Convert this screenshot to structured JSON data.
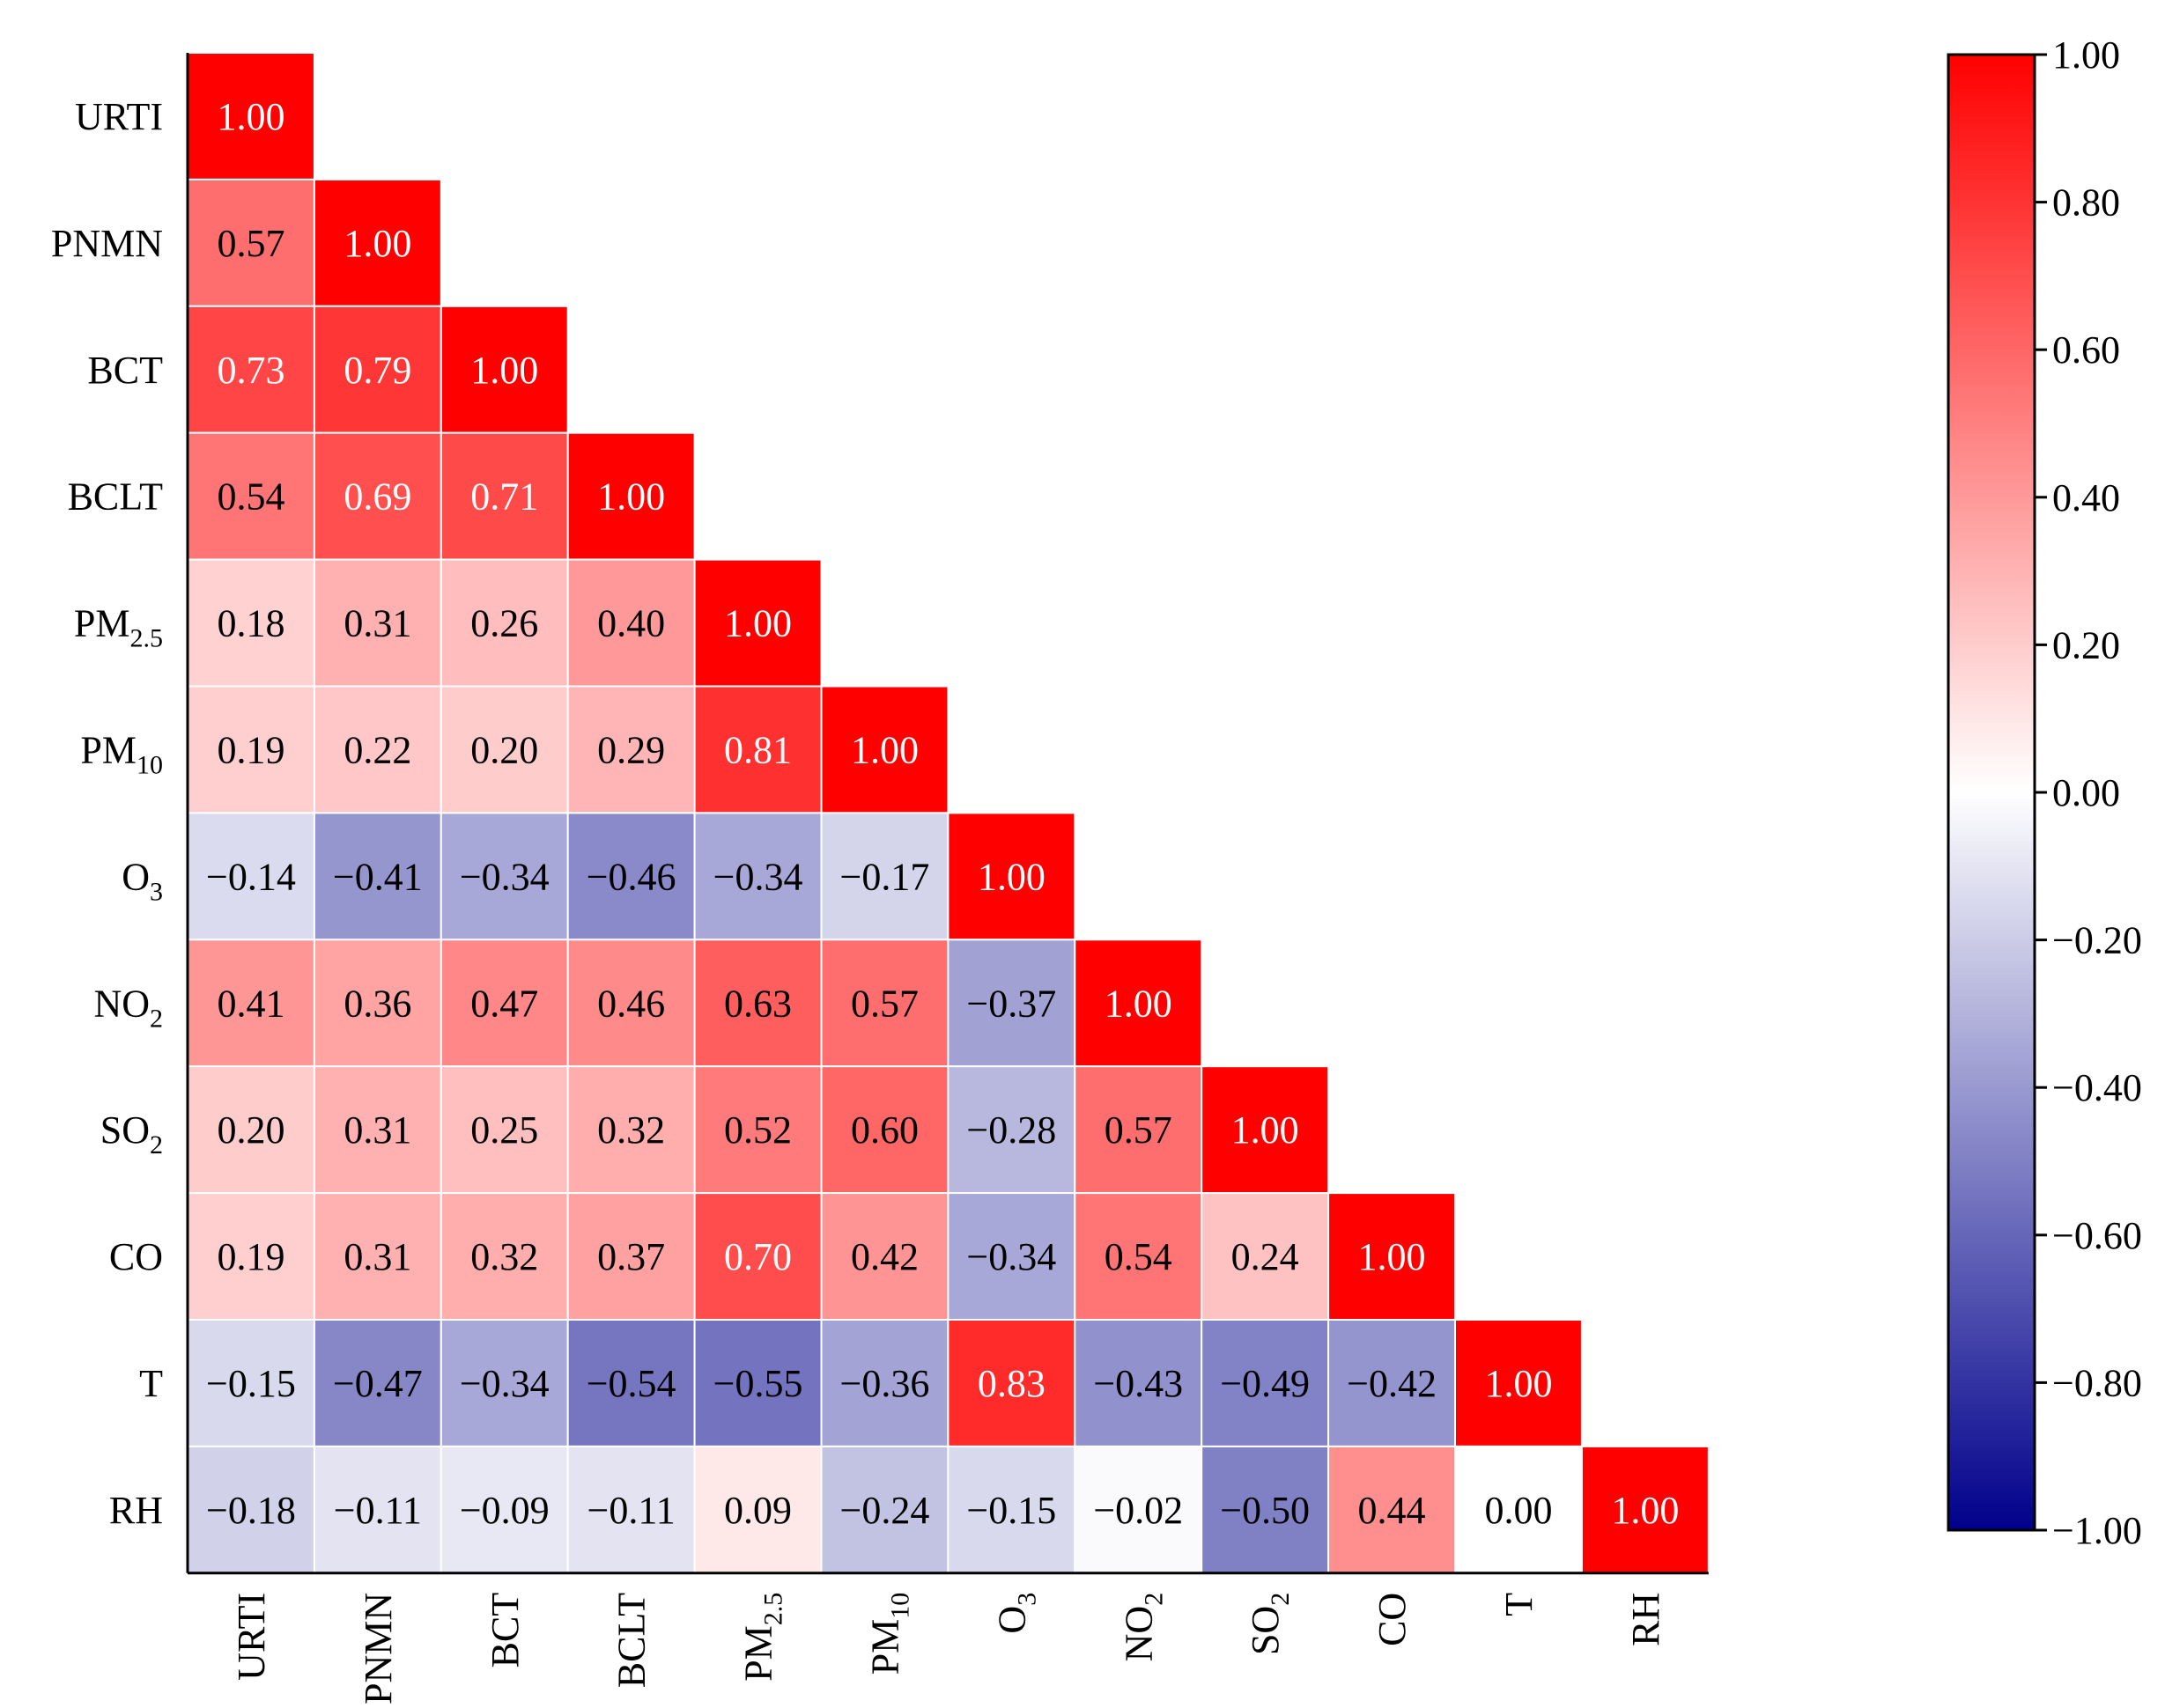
{
  "chart_data": {
    "type": "heatmap",
    "title": "",
    "xlabel": "",
    "ylabel": "",
    "variables": [
      {
        "base": "URTI",
        "sub": ""
      },
      {
        "base": "PNMN",
        "sub": ""
      },
      {
        "base": "BCT",
        "sub": ""
      },
      {
        "base": "BCLT",
        "sub": ""
      },
      {
        "base": "PM",
        "sub": "2.5"
      },
      {
        "base": "PM",
        "sub": "10"
      },
      {
        "base": "O",
        "sub": "3"
      },
      {
        "base": "NO",
        "sub": "2"
      },
      {
        "base": "SO",
        "sub": "2"
      },
      {
        "base": "CO",
        "sub": ""
      },
      {
        "base": "T",
        "sub": ""
      },
      {
        "base": "RH",
        "sub": ""
      }
    ],
    "matrix": [
      [
        1.0
      ],
      [
        0.57,
        1.0
      ],
      [
        0.73,
        0.79,
        1.0
      ],
      [
        0.54,
        0.69,
        0.71,
        1.0
      ],
      [
        0.18,
        0.31,
        0.26,
        0.4,
        1.0
      ],
      [
        0.19,
        0.22,
        0.2,
        0.29,
        0.81,
        1.0
      ],
      [
        -0.14,
        -0.41,
        -0.34,
        -0.46,
        -0.34,
        -0.17,
        1.0
      ],
      [
        0.41,
        0.36,
        0.47,
        0.46,
        0.63,
        0.57,
        -0.37,
        1.0
      ],
      [
        0.2,
        0.31,
        0.25,
        0.32,
        0.52,
        0.6,
        -0.28,
        0.57,
        1.0
      ],
      [
        0.19,
        0.31,
        0.32,
        0.37,
        0.7,
        0.42,
        -0.34,
        0.54,
        0.24,
        1.0
      ],
      [
        -0.15,
        -0.47,
        -0.34,
        -0.54,
        -0.55,
        -0.36,
        0.83,
        -0.43,
        -0.49,
        -0.42,
        1.0
      ],
      [
        -0.18,
        -0.11,
        -0.09,
        -0.11,
        0.09,
        -0.24,
        -0.15,
        -0.02,
        -0.5,
        0.44,
        0.0,
        1.0
      ]
    ],
    "value_labels": [
      [
        "1.00"
      ],
      [
        "0.57",
        "1.00"
      ],
      [
        "0.73",
        "0.79",
        "1.00"
      ],
      [
        "0.54",
        "0.69",
        "0.71",
        "1.00"
      ],
      [
        "0.18",
        "0.31",
        "0.26",
        "0.40",
        "1.00"
      ],
      [
        "0.19",
        "0.22",
        "0.20",
        "0.29",
        "0.81",
        "1.00"
      ],
      [
        "−0.14",
        "−0.41",
        "−0.34",
        "−0.46",
        "−0.34",
        "−0.17",
        "1.00"
      ],
      [
        "0.41",
        "0.36",
        "0.47",
        "0.46",
        "0.63",
        "0.57",
        "−0.37",
        "1.00"
      ],
      [
        "0.20",
        "0.31",
        "0.25",
        "0.32",
        "0.52",
        "0.60",
        "−0.28",
        "0.57",
        "1.00"
      ],
      [
        "0.19",
        "0.31",
        "0.32",
        "0.37",
        "0.70",
        "0.42",
        "−0.34",
        "0.54",
        "0.24",
        "1.00"
      ],
      [
        "−0.15",
        "−0.47",
        "−0.34",
        "−0.54",
        "−0.55",
        "−0.36",
        "0.83",
        "−0.43",
        "−0.49",
        "−0.42",
        "1.00"
      ],
      [
        "−0.18",
        "−0.11",
        "−0.09",
        "−0.11",
        "0.09",
        "−0.24",
        "−0.15",
        "−0.02",
        "−0.50",
        "0.44",
        "0.00",
        "1.00"
      ]
    ],
    "colorbar": {
      "range": [
        -1.0,
        1.0
      ],
      "ticks": [
        1.0,
        0.8,
        0.6,
        0.4,
        0.2,
        0.0,
        -0.2,
        -0.4,
        -0.6,
        -0.8,
        -1.0
      ],
      "tick_labels": [
        "1.00",
        "0.80",
        "0.60",
        "0.40",
        "0.20",
        "0.00",
        "−0.20",
        "−0.40",
        "−0.60",
        "−0.80",
        "−1.00"
      ]
    },
    "colors": {
      "positive": "#ff0000",
      "zero": "#ffffff",
      "negative": "#00008b",
      "cell_border": "#ffffff",
      "axis": "#000000",
      "text_dark": "#000000",
      "text_light": "#ffffff"
    },
    "legend_position": "right"
  }
}
